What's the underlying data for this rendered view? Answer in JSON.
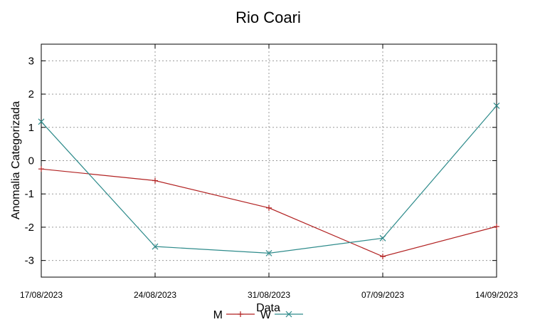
{
  "chart_data": {
    "type": "line",
    "title": "Rio Coari",
    "xlabel": "Data",
    "ylabel": "Anomalia Categorizada",
    "x": [
      "17/08/2023",
      "24/08/2023",
      "31/08/2023",
      "07/09/2023",
      "14/09/2023"
    ],
    "ylim": [
      -3.5,
      3.5
    ],
    "yticks": [
      "3",
      "2",
      "1",
      "0",
      "-1",
      "-2",
      "-3"
    ],
    "ytick_values": [
      3,
      2,
      1,
      0,
      -1,
      -2,
      -3
    ],
    "grid": true,
    "legend_position": "bottom-center",
    "series": [
      {
        "name": "M",
        "color": "#b22222",
        "marker": "plus",
        "values": [
          -0.25,
          -0.6,
          -1.42,
          -2.88,
          -1.98
        ]
      },
      {
        "name": "W",
        "color": "#2e8b8b",
        "marker": "cross",
        "values": [
          1.17,
          -2.58,
          -2.78,
          -2.33,
          1.65
        ]
      }
    ]
  }
}
